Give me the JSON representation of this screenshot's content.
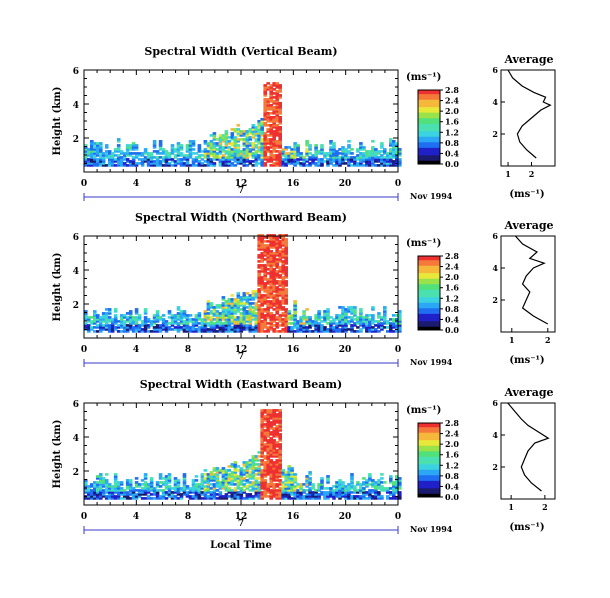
{
  "figure": {
    "date_label": "Nov 1994",
    "day_label": "7",
    "x_axis_label": "Local Time",
    "unit_label": "(ms⁻¹)",
    "colorbar_ticks": [
      "0.0",
      "0.4",
      "0.8",
      "1.2",
      "1.6",
      "2.0",
      "2.4",
      "2.8"
    ],
    "colorscale": [
      "#000000",
      "#1a1a6e",
      "#2020c8",
      "#1f6ff2",
      "#2aa8f5",
      "#3cd3e0",
      "#4be0b0",
      "#52e07a",
      "#9ae24a",
      "#e8e83a",
      "#f5b83a",
      "#f57a3a",
      "#ee3030"
    ]
  },
  "chart_data": [
    {
      "type": "heatmap",
      "title": "Spectral Width (Vertical Beam)",
      "xlabel": "",
      "ylabel": "Height (km)",
      "x_ticks": [
        "0",
        "4",
        "8",
        "12",
        "16",
        "20",
        "0"
      ],
      "xlim": [
        0,
        24
      ],
      "y_ticks": [
        "2",
        "4",
        "6"
      ],
      "ylim": [
        0,
        6
      ],
      "colorbar_range": [
        0,
        2.8
      ],
      "precip_window_hours": [
        13.5,
        15.0
      ],
      "precip_top_km": 5.2,
      "profile": {
        "title": "Average",
        "xlabel": "(ms⁻¹)",
        "x_ticks": [
          "1",
          "2"
        ],
        "xlim": [
          0.7,
          3.0
        ],
        "height_km": [
          0.5,
          1.0,
          1.5,
          2.0,
          2.5,
          3.0,
          3.5,
          3.8,
          4.0,
          4.3,
          4.6,
          5.0,
          5.5,
          6.0
        ],
        "width": [
          2.2,
          1.8,
          1.5,
          1.4,
          1.6,
          2.0,
          2.4,
          2.8,
          2.5,
          2.6,
          2.1,
          1.6,
          1.2,
          1.0
        ]
      }
    },
    {
      "type": "heatmap",
      "title": "Spectral Width (Northward Beam)",
      "xlabel": "",
      "ylabel": "Height (km)",
      "x_ticks": [
        "0",
        "4",
        "8",
        "12",
        "16",
        "20",
        "0"
      ],
      "xlim": [
        0,
        24
      ],
      "y_ticks": [
        "2",
        "4",
        "6"
      ],
      "ylim": [
        0,
        6
      ],
      "colorbar_range": [
        0,
        2.8
      ],
      "precip_window_hours": [
        13.2,
        15.5
      ],
      "precip_top_km": 6.0,
      "profile": {
        "title": "Average",
        "xlabel": "(ms⁻¹)",
        "x_ticks": [
          "1",
          "2"
        ],
        "xlim": [
          0.7,
          2.2
        ],
        "height_km": [
          0.5,
          1.0,
          1.5,
          2.0,
          2.5,
          3.0,
          3.5,
          4.0,
          4.3,
          4.6,
          5.0,
          5.5,
          6.0
        ],
        "width": [
          2.0,
          1.6,
          1.3,
          1.4,
          1.5,
          1.3,
          1.4,
          1.6,
          1.9,
          1.5,
          1.7,
          1.3,
          1.1
        ]
      }
    },
    {
      "type": "heatmap",
      "title": "Spectral Width (Eastward Beam)",
      "xlabel": "Local Time",
      "ylabel": "Height (km)",
      "x_ticks": [
        "0",
        "4",
        "8",
        "12",
        "16",
        "20",
        "0"
      ],
      "xlim": [
        0,
        24
      ],
      "y_ticks": [
        "2",
        "4",
        "6"
      ],
      "ylim": [
        0,
        6
      ],
      "colorbar_range": [
        0,
        2.8
      ],
      "precip_window_hours": [
        13.3,
        15.0
      ],
      "precip_top_km": 5.6,
      "profile": {
        "title": "Average",
        "xlabel": "(ms⁻¹)",
        "x_ticks": [
          "1",
          "2"
        ],
        "xlim": [
          0.7,
          2.3
        ],
        "height_km": [
          0.5,
          1.0,
          1.5,
          2.0,
          2.5,
          3.0,
          3.5,
          3.8,
          4.2,
          4.6,
          5.0,
          5.5,
          6.0
        ],
        "width": [
          1.9,
          1.6,
          1.4,
          1.3,
          1.4,
          1.5,
          1.7,
          2.1,
          1.8,
          1.5,
          1.3,
          1.1,
          0.9
        ]
      }
    }
  ]
}
